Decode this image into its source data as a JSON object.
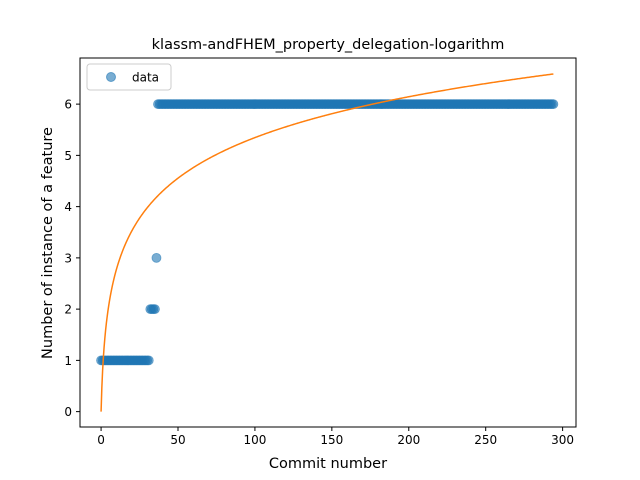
{
  "chart_data": {
    "type": "scatter",
    "title": "klassm-andFHEM_property_delegation-logarithm",
    "xlabel": "Commit number",
    "ylabel": "Number of instance of a feature",
    "xlim": [
      -13.7,
      308.7
    ],
    "ylim": [
      -0.3,
      6.9
    ],
    "xticks": [
      0,
      50,
      100,
      150,
      200,
      250,
      300
    ],
    "yticks": [
      0,
      1,
      2,
      3,
      4,
      5,
      6
    ],
    "xtick_labels": [
      "0",
      "50",
      "100",
      "150",
      "200",
      "250",
      "300"
    ],
    "ytick_labels": [
      "0",
      "1",
      "2",
      "3",
      "4",
      "5",
      "6"
    ],
    "grid": false,
    "legend": {
      "position": "top-left",
      "entries": [
        "data"
      ]
    },
    "series": [
      {
        "name": "data",
        "kind": "points",
        "color": "#1f77b4",
        "alpha": 0.6,
        "segments": [
          {
            "x_start": 0,
            "x_end": 31,
            "y": 1
          },
          {
            "x_start": 32,
            "x_end": 35,
            "y": 2
          },
          {
            "x_start": 36,
            "x_end": 36,
            "y": 3
          },
          {
            "x_start": 37,
            "x_end": 294,
            "y": 6
          }
        ]
      },
      {
        "kind": "fit-line",
        "color": "#ff7f0e",
        "model": "y = a * ln(x + 1)",
        "a": 1.1585,
        "x_range": [
          0,
          294
        ]
      }
    ]
  }
}
